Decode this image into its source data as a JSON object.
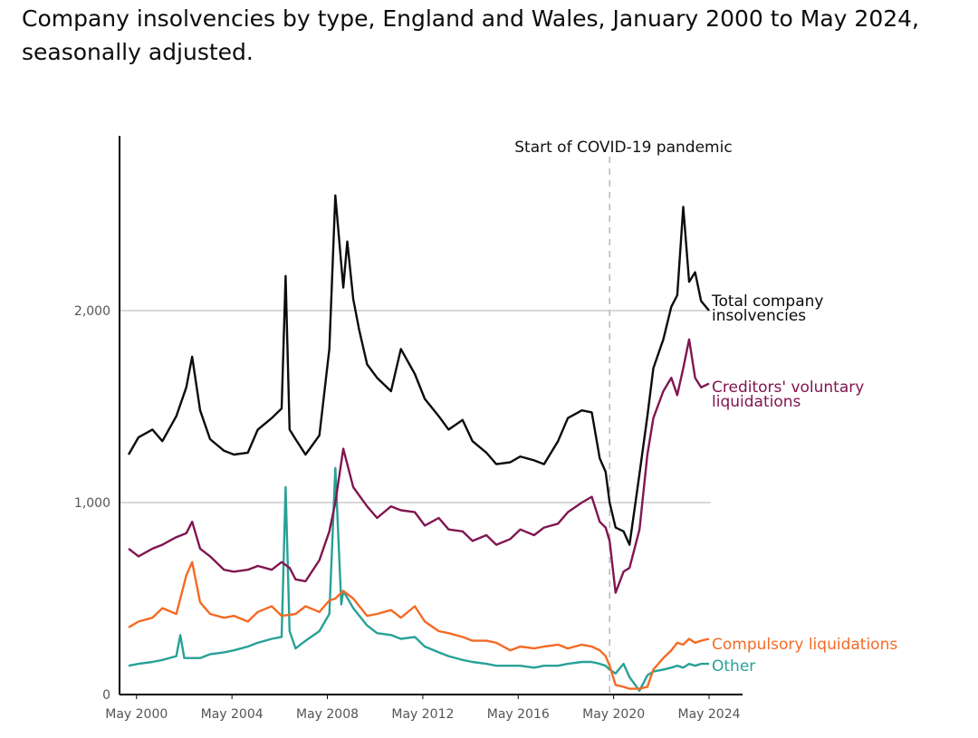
{
  "title": "Company insolvencies by type, England and Wales, January 2000 to May 2024, seasonally adjusted.",
  "chart_data": {
    "type": "line",
    "title": "Company insolvencies by type, England and Wales, January 2000 to May 2024, seasonally adjusted.",
    "xlabel": "",
    "ylabel": "",
    "x_ticks": [
      "May 2000",
      "May 2004",
      "May 2008",
      "May 2012",
      "May 2016",
      "May 2020",
      "May 2024"
    ],
    "y_ticks": [
      "0",
      "1,000",
      "2,000"
    ],
    "y_tick_values": [
      0,
      1000,
      2000
    ],
    "ylim": [
      0,
      2900
    ],
    "xlim": [
      "2000-01",
      "2024-05"
    ],
    "grid": "horizontal",
    "legend": "direct labels at right end of lines",
    "annotation": {
      "label": "Start of COVID-19 pandemic",
      "x": "2020-03"
    },
    "colors": {
      "total": "#0b0c0c",
      "cvl": "#801650",
      "compulsory": "#f46a25",
      "other": "#28a197",
      "grid": "#cccccc",
      "covid_line": "#bbbbbb"
    },
    "series": [
      {
        "key": "total",
        "name": "Total company insolvencies",
        "points": [
          [
            "2000-01",
            1250
          ],
          [
            "2000-06",
            1340
          ],
          [
            "2001-01",
            1380
          ],
          [
            "2001-06",
            1320
          ],
          [
            "2002-01",
            1450
          ],
          [
            "2002-06",
            1600
          ],
          [
            "2002-09",
            1760
          ],
          [
            "2003-01",
            1480
          ],
          [
            "2003-06",
            1330
          ],
          [
            "2004-01",
            1270
          ],
          [
            "2004-06",
            1250
          ],
          [
            "2005-01",
            1260
          ],
          [
            "2005-06",
            1380
          ],
          [
            "2006-01",
            1440
          ],
          [
            "2006-06",
            1490
          ],
          [
            "2006-08",
            2180
          ],
          [
            "2006-10",
            1380
          ],
          [
            "2007-01",
            1330
          ],
          [
            "2007-06",
            1250
          ],
          [
            "2008-01",
            1350
          ],
          [
            "2008-06",
            1800
          ],
          [
            "2008-09",
            2600
          ],
          [
            "2009-01",
            2120
          ],
          [
            "2009-03",
            2360
          ],
          [
            "2009-06",
            2060
          ],
          [
            "2009-09",
            1900
          ],
          [
            "2010-01",
            1720
          ],
          [
            "2010-06",
            1650
          ],
          [
            "2011-01",
            1580
          ],
          [
            "2011-06",
            1800
          ],
          [
            "2012-01",
            1670
          ],
          [
            "2012-06",
            1540
          ],
          [
            "2013-01",
            1450
          ],
          [
            "2013-06",
            1380
          ],
          [
            "2014-01",
            1430
          ],
          [
            "2014-06",
            1320
          ],
          [
            "2015-01",
            1260
          ],
          [
            "2015-06",
            1200
          ],
          [
            "2016-01",
            1210
          ],
          [
            "2016-06",
            1240
          ],
          [
            "2017-01",
            1220
          ],
          [
            "2017-06",
            1200
          ],
          [
            "2018-01",
            1320
          ],
          [
            "2018-06",
            1440
          ],
          [
            "2019-01",
            1480
          ],
          [
            "2019-06",
            1470
          ],
          [
            "2019-10",
            1230
          ],
          [
            "2020-01",
            1160
          ],
          [
            "2020-03",
            1000
          ],
          [
            "2020-06",
            870
          ],
          [
            "2020-10",
            850
          ],
          [
            "2021-01",
            780
          ],
          [
            "2021-06",
            1150
          ],
          [
            "2021-10",
            1450
          ],
          [
            "2022-01",
            1700
          ],
          [
            "2022-06",
            1850
          ],
          [
            "2022-10",
            2020
          ],
          [
            "2023-01",
            2080
          ],
          [
            "2023-04",
            2540
          ],
          [
            "2023-07",
            2150
          ],
          [
            "2023-10",
            2200
          ],
          [
            "2024-01",
            2050
          ],
          [
            "2024-05",
            2000
          ]
        ]
      },
      {
        "key": "cvl",
        "name": "Creditors' voluntary liquidations",
        "points": [
          [
            "2000-01",
            760
          ],
          [
            "2000-06",
            720
          ],
          [
            "2001-01",
            760
          ],
          [
            "2001-06",
            780
          ],
          [
            "2002-01",
            820
          ],
          [
            "2002-06",
            840
          ],
          [
            "2002-09",
            900
          ],
          [
            "2003-01",
            760
          ],
          [
            "2003-06",
            720
          ],
          [
            "2004-01",
            650
          ],
          [
            "2004-06",
            640
          ],
          [
            "2005-01",
            650
          ],
          [
            "2005-06",
            670
          ],
          [
            "2006-01",
            650
          ],
          [
            "2006-06",
            690
          ],
          [
            "2006-10",
            660
          ],
          [
            "2007-01",
            600
          ],
          [
            "2007-06",
            590
          ],
          [
            "2008-01",
            700
          ],
          [
            "2008-06",
            850
          ],
          [
            "2008-09",
            1000
          ],
          [
            "2009-01",
            1280
          ],
          [
            "2009-06",
            1080
          ],
          [
            "2010-01",
            980
          ],
          [
            "2010-06",
            920
          ],
          [
            "2011-01",
            980
          ],
          [
            "2011-06",
            960
          ],
          [
            "2012-01",
            950
          ],
          [
            "2012-06",
            880
          ],
          [
            "2013-01",
            920
          ],
          [
            "2013-06",
            860
          ],
          [
            "2014-01",
            850
          ],
          [
            "2014-06",
            800
          ],
          [
            "2015-01",
            830
          ],
          [
            "2015-06",
            780
          ],
          [
            "2016-01",
            810
          ],
          [
            "2016-06",
            860
          ],
          [
            "2017-01",
            830
          ],
          [
            "2017-06",
            870
          ],
          [
            "2018-01",
            890
          ],
          [
            "2018-06",
            950
          ],
          [
            "2019-01",
            1000
          ],
          [
            "2019-06",
            1030
          ],
          [
            "2019-10",
            900
          ],
          [
            "2020-01",
            870
          ],
          [
            "2020-03",
            800
          ],
          [
            "2020-06",
            530
          ],
          [
            "2020-10",
            640
          ],
          [
            "2021-01",
            660
          ],
          [
            "2021-06",
            860
          ],
          [
            "2021-10",
            1250
          ],
          [
            "2022-01",
            1440
          ],
          [
            "2022-06",
            1580
          ],
          [
            "2022-10",
            1650
          ],
          [
            "2023-01",
            1560
          ],
          [
            "2023-04",
            1700
          ],
          [
            "2023-07",
            1850
          ],
          [
            "2023-10",
            1650
          ],
          [
            "2024-01",
            1600
          ],
          [
            "2024-05",
            1620
          ]
        ]
      },
      {
        "key": "compulsory",
        "name": "Compulsory liquidations",
        "points": [
          [
            "2000-01",
            350
          ],
          [
            "2000-06",
            380
          ],
          [
            "2001-01",
            400
          ],
          [
            "2001-06",
            450
          ],
          [
            "2002-01",
            420
          ],
          [
            "2002-06",
            620
          ],
          [
            "2002-09",
            690
          ],
          [
            "2003-01",
            480
          ],
          [
            "2003-06",
            420
          ],
          [
            "2004-01",
            400
          ],
          [
            "2004-06",
            410
          ],
          [
            "2005-01",
            380
          ],
          [
            "2005-06",
            430
          ],
          [
            "2006-01",
            460
          ],
          [
            "2006-06",
            410
          ],
          [
            "2007-01",
            420
          ],
          [
            "2007-06",
            460
          ],
          [
            "2008-01",
            430
          ],
          [
            "2008-06",
            490
          ],
          [
            "2008-09",
            500
          ],
          [
            "2009-01",
            540
          ],
          [
            "2009-06",
            500
          ],
          [
            "2010-01",
            410
          ],
          [
            "2010-06",
            420
          ],
          [
            "2011-01",
            440
          ],
          [
            "2011-06",
            400
          ],
          [
            "2012-01",
            460
          ],
          [
            "2012-06",
            380
          ],
          [
            "2013-01",
            330
          ],
          [
            "2013-06",
            320
          ],
          [
            "2014-01",
            300
          ],
          [
            "2014-06",
            280
          ],
          [
            "2015-01",
            280
          ],
          [
            "2015-06",
            270
          ],
          [
            "2016-01",
            230
          ],
          [
            "2016-06",
            250
          ],
          [
            "2017-01",
            240
          ],
          [
            "2017-06",
            250
          ],
          [
            "2018-01",
            260
          ],
          [
            "2018-06",
            240
          ],
          [
            "2019-01",
            260
          ],
          [
            "2019-06",
            250
          ],
          [
            "2019-10",
            230
          ],
          [
            "2020-01",
            200
          ],
          [
            "2020-03",
            150
          ],
          [
            "2020-06",
            50
          ],
          [
            "2020-10",
            40
          ],
          [
            "2021-01",
            30
          ],
          [
            "2021-06",
            30
          ],
          [
            "2021-10",
            40
          ],
          [
            "2022-01",
            130
          ],
          [
            "2022-06",
            190
          ],
          [
            "2022-10",
            230
          ],
          [
            "2023-01",
            270
          ],
          [
            "2023-04",
            260
          ],
          [
            "2023-07",
            290
          ],
          [
            "2023-10",
            270
          ],
          [
            "2024-01",
            280
          ],
          [
            "2024-05",
            290
          ]
        ]
      },
      {
        "key": "other",
        "name": "Other",
        "points": [
          [
            "2000-01",
            150
          ],
          [
            "2000-06",
            160
          ],
          [
            "2001-01",
            170
          ],
          [
            "2001-06",
            180
          ],
          [
            "2002-01",
            200
          ],
          [
            "2002-03",
            310
          ],
          [
            "2002-05",
            190
          ],
          [
            "2003-01",
            190
          ],
          [
            "2003-06",
            210
          ],
          [
            "2004-01",
            220
          ],
          [
            "2004-06",
            230
          ],
          [
            "2005-01",
            250
          ],
          [
            "2005-06",
            270
          ],
          [
            "2006-01",
            290
          ],
          [
            "2006-06",
            300
          ],
          [
            "2006-08",
            1080
          ],
          [
            "2006-10",
            330
          ],
          [
            "2007-01",
            240
          ],
          [
            "2007-06",
            280
          ],
          [
            "2008-01",
            330
          ],
          [
            "2008-06",
            420
          ],
          [
            "2008-09",
            1180
          ],
          [
            "2008-12",
            470
          ],
          [
            "2009-01",
            540
          ],
          [
            "2009-06",
            450
          ],
          [
            "2010-01",
            360
          ],
          [
            "2010-06",
            320
          ],
          [
            "2011-01",
            310
          ],
          [
            "2011-06",
            290
          ],
          [
            "2012-01",
            300
          ],
          [
            "2012-06",
            250
          ],
          [
            "2013-01",
            220
          ],
          [
            "2013-06",
            200
          ],
          [
            "2014-01",
            180
          ],
          [
            "2014-06",
            170
          ],
          [
            "2015-01",
            160
          ],
          [
            "2015-06",
            150
          ],
          [
            "2016-01",
            150
          ],
          [
            "2016-06",
            150
          ],
          [
            "2017-01",
            140
          ],
          [
            "2017-06",
            150
          ],
          [
            "2018-01",
            150
          ],
          [
            "2018-06",
            160
          ],
          [
            "2019-01",
            170
          ],
          [
            "2019-06",
            170
          ],
          [
            "2019-10",
            160
          ],
          [
            "2020-01",
            150
          ],
          [
            "2020-03",
            130
          ],
          [
            "2020-06",
            110
          ],
          [
            "2020-10",
            160
          ],
          [
            "2021-01",
            90
          ],
          [
            "2021-06",
            20
          ],
          [
            "2021-10",
            100
          ],
          [
            "2022-01",
            120
          ],
          [
            "2022-06",
            130
          ],
          [
            "2022-10",
            140
          ],
          [
            "2023-01",
            150
          ],
          [
            "2023-04",
            140
          ],
          [
            "2023-07",
            160
          ],
          [
            "2023-10",
            150
          ],
          [
            "2024-01",
            160
          ],
          [
            "2024-05",
            160
          ]
        ]
      }
    ],
    "series_labels": {
      "total": [
        "Total company",
        "insolvencies"
      ],
      "cvl": [
        "Creditors' voluntary",
        "liquidations"
      ],
      "compulsory": [
        "Compulsory liquidations"
      ],
      "other": [
        "Other"
      ]
    }
  }
}
